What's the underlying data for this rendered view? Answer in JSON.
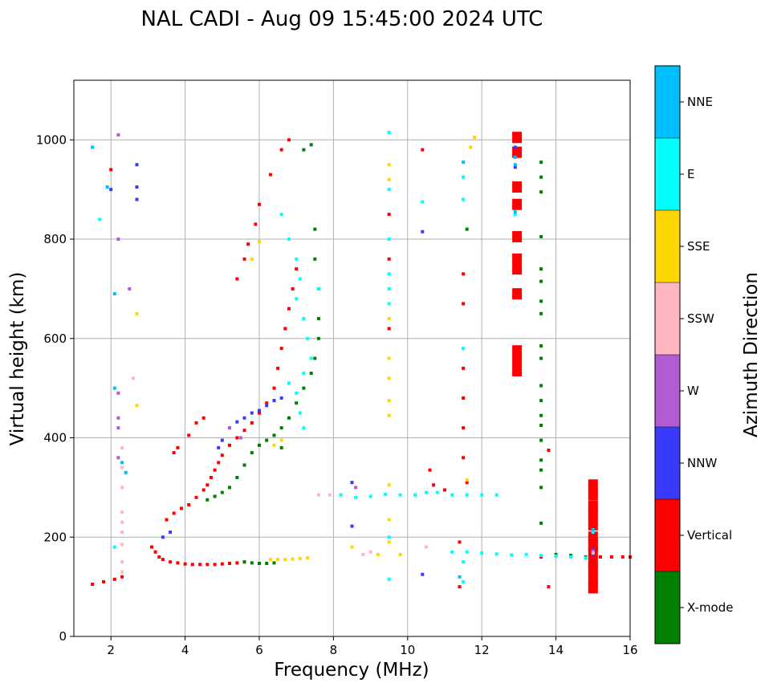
{
  "chart_data": {
    "type": "scatter",
    "title": "NAL CADI - Aug 09 15:45:00 2024 UTC",
    "xlabel": "Frequency (MHz)",
    "ylabel": "Virtual height (km)",
    "xlim": [
      1,
      16
    ],
    "ylim": [
      0,
      1120
    ],
    "xticks": [
      2,
      4,
      6,
      8,
      10,
      12,
      14,
      16
    ],
    "yticks": [
      0,
      200,
      400,
      600,
      800,
      1000
    ],
    "grid": true,
    "colorbar": {
      "label": "Azimuth Direction",
      "categories": [
        {
          "name": "X-mode",
          "color": "#008000"
        },
        {
          "name": "Vertical",
          "color": "#ff0000"
        },
        {
          "name": "NNW",
          "color": "#3a3aff"
        },
        {
          "name": "W",
          "color": "#b45ad2"
        },
        {
          "name": "SSW",
          "color": "#ffb6c1"
        },
        {
          "name": "SSE",
          "color": "#ffd700"
        },
        {
          "name": "E",
          "color": "#00ffff"
        },
        {
          "name": "NNE",
          "color": "#00bfff"
        }
      ]
    },
    "series": [
      {
        "name": "Vertical",
        "color": "#ff0000",
        "points": [
          [
            3.1,
            180
          ],
          [
            3.2,
            170
          ],
          [
            3.3,
            160
          ],
          [
            3.4,
            155
          ],
          [
            3.6,
            150
          ],
          [
            3.8,
            148
          ],
          [
            4.0,
            146
          ],
          [
            4.2,
            145
          ],
          [
            4.4,
            145
          ],
          [
            4.6,
            145
          ],
          [
            4.8,
            145
          ],
          [
            5.0,
            146
          ],
          [
            5.2,
            147
          ],
          [
            5.4,
            148
          ],
          [
            5.6,
            150
          ],
          [
            3.5,
            235
          ],
          [
            3.7,
            248
          ],
          [
            3.9,
            258
          ],
          [
            4.1,
            265
          ],
          [
            4.3,
            280
          ],
          [
            4.5,
            295
          ],
          [
            4.6,
            305
          ],
          [
            4.7,
            320
          ],
          [
            4.8,
            335
          ],
          [
            4.9,
            350
          ],
          [
            5.0,
            365
          ],
          [
            5.2,
            385
          ],
          [
            5.4,
            400
          ],
          [
            5.6,
            415
          ],
          [
            5.8,
            430
          ],
          [
            6.0,
            450
          ],
          [
            6.2,
            470
          ],
          [
            6.4,
            500
          ],
          [
            6.5,
            540
          ],
          [
            6.6,
            580
          ],
          [
            6.7,
            620
          ],
          [
            6.8,
            660
          ],
          [
            6.9,
            700
          ],
          [
            7.0,
            740
          ],
          [
            3.7,
            370
          ],
          [
            3.8,
            380
          ],
          [
            4.1,
            405
          ],
          [
            4.3,
            430
          ],
          [
            4.5,
            440
          ],
          [
            5.4,
            720
          ],
          [
            5.6,
            760
          ],
          [
            5.7,
            790
          ],
          [
            5.9,
            830
          ],
          [
            6.0,
            870
          ],
          [
            6.3,
            930
          ],
          [
            6.6,
            980
          ],
          [
            6.8,
            1000
          ],
          [
            1.5,
            105
          ],
          [
            1.8,
            110
          ],
          [
            2.1,
            115
          ],
          [
            2.3,
            120
          ],
          [
            2.0,
            940
          ],
          [
            9.5,
            850
          ],
          [
            9.5,
            760
          ],
          [
            9.5,
            620
          ],
          [
            10.4,
            980
          ],
          [
            10.6,
            335
          ],
          [
            10.7,
            305
          ],
          [
            11.0,
            295
          ],
          [
            11.4,
            190
          ],
          [
            11.4,
            100
          ],
          [
            11.5,
            540
          ],
          [
            11.5,
            480
          ],
          [
            11.5,
            420
          ],
          [
            11.5,
            360
          ],
          [
            11.5,
            730
          ],
          [
            11.5,
            670
          ],
          [
            11.6,
            310
          ],
          [
            13.8,
            375
          ],
          [
            13.8,
            100
          ],
          [
            13.6,
            160
          ],
          [
            14.0,
            162
          ],
          [
            15.2,
            160
          ],
          [
            15.5,
            160
          ],
          [
            15.8,
            160
          ],
          [
            16.0,
            160
          ]
        ]
      },
      {
        "name": "Vertical (blocks)",
        "color": "#ff0000",
        "points": [
          [
            12.95,
            1005
          ],
          [
            12.95,
            975
          ],
          [
            12.95,
            905
          ],
          [
            12.95,
            870
          ],
          [
            12.95,
            805
          ],
          [
            12.95,
            760
          ],
          [
            12.95,
            740
          ],
          [
            12.95,
            690
          ],
          [
            12.95,
            575
          ],
          [
            12.95,
            555
          ],
          [
            12.95,
            535
          ],
          [
            15.0,
            305
          ],
          [
            15.0,
            285
          ],
          [
            15.0,
            262
          ],
          [
            15.0,
            245
          ],
          [
            15.0,
            225
          ],
          [
            15.0,
            200
          ],
          [
            15.0,
            185
          ],
          [
            15.0,
            170
          ],
          [
            15.0,
            150
          ],
          [
            15.0,
            135
          ],
          [
            15.0,
            115
          ],
          [
            15.0,
            98
          ]
        ]
      },
      {
        "name": "X-mode",
        "color": "#008000",
        "points": [
          [
            4.6,
            275
          ],
          [
            4.8,
            282
          ],
          [
            5.0,
            290
          ],
          [
            5.2,
            300
          ],
          [
            5.4,
            320
          ],
          [
            5.6,
            345
          ],
          [
            5.8,
            370
          ],
          [
            6.0,
            385
          ],
          [
            6.2,
            395
          ],
          [
            6.4,
            405
          ],
          [
            6.6,
            420
          ],
          [
            6.8,
            440
          ],
          [
            7.0,
            470
          ],
          [
            7.2,
            500
          ],
          [
            7.4,
            530
          ],
          [
            7.5,
            560
          ],
          [
            7.6,
            600
          ],
          [
            7.6,
            640
          ],
          [
            7.6,
            700
          ],
          [
            7.5,
            760
          ],
          [
            7.5,
            820
          ],
          [
            5.6,
            150
          ],
          [
            5.8,
            148
          ],
          [
            6.0,
            147
          ],
          [
            6.2,
            147
          ],
          [
            6.4,
            148
          ],
          [
            6.6,
            380
          ],
          [
            7.2,
            980
          ],
          [
            7.4,
            990
          ],
          [
            13.6,
            955
          ],
          [
            13.6,
            925
          ],
          [
            13.6,
            895
          ],
          [
            13.6,
            805
          ],
          [
            13.6,
            740
          ],
          [
            13.6,
            715
          ],
          [
            13.6,
            675
          ],
          [
            13.6,
            650
          ],
          [
            13.6,
            585
          ],
          [
            13.6,
            560
          ],
          [
            13.6,
            505
          ],
          [
            13.6,
            475
          ],
          [
            13.6,
            445
          ],
          [
            13.6,
            425
          ],
          [
            13.6,
            395
          ],
          [
            13.6,
            355
          ],
          [
            13.6,
            335
          ],
          [
            13.6,
            300
          ],
          [
            13.6,
            228
          ],
          [
            11.6,
            820
          ],
          [
            14.0,
            165
          ],
          [
            14.4,
            163
          ],
          [
            14.8,
            160
          ]
        ]
      },
      {
        "name": "NNW",
        "color": "#3a3aff",
        "points": [
          [
            3.4,
            200
          ],
          [
            3.6,
            210
          ],
          [
            5.2,
            420
          ],
          [
            5.4,
            432
          ],
          [
            5.6,
            440
          ],
          [
            5.8,
            450
          ],
          [
            6.0,
            455
          ],
          [
            6.2,
            465
          ],
          [
            6.4,
            475
          ],
          [
            6.6,
            480
          ],
          [
            5.0,
            395
          ],
          [
            4.9,
            380
          ],
          [
            2.0,
            900
          ],
          [
            2.7,
            880
          ],
          [
            2.7,
            905
          ],
          [
            2.7,
            950
          ],
          [
            10.4,
            815
          ],
          [
            10.4,
            125
          ],
          [
            8.5,
            310
          ],
          [
            8.5,
            222
          ],
          [
            12.9,
            985
          ],
          [
            12.9,
            945
          ],
          [
            15.0,
            175
          ],
          [
            15.0,
            165
          ]
        ]
      },
      {
        "name": "W",
        "color": "#b45ad2",
        "points": [
          [
            2.2,
            1010
          ],
          [
            2.2,
            800
          ],
          [
            2.2,
            490
          ],
          [
            2.2,
            440
          ],
          [
            2.2,
            420
          ],
          [
            2.2,
            360
          ],
          [
            2.5,
            700
          ],
          [
            5.2,
            420
          ],
          [
            5.5,
            400
          ],
          [
            8.6,
            300
          ],
          [
            15.0,
            172
          ]
        ]
      },
      {
        "name": "SSW",
        "color": "#ffb6c1",
        "points": [
          [
            2.3,
            380
          ],
          [
            2.3,
            340
          ],
          [
            2.3,
            300
          ],
          [
            2.3,
            250
          ],
          [
            2.3,
            230
          ],
          [
            2.3,
            210
          ],
          [
            2.3,
            185
          ],
          [
            2.3,
            150
          ],
          [
            2.3,
            130
          ],
          [
            2.6,
            520
          ],
          [
            7.9,
            285
          ],
          [
            7.6,
            285
          ],
          [
            10.5,
            180
          ],
          [
            9.0,
            170
          ],
          [
            8.8,
            165
          ],
          [
            15.0,
            168
          ]
        ]
      },
      {
        "name": "SSE",
        "color": "#ffd700",
        "points": [
          [
            6.3,
            155
          ],
          [
            6.5,
            155
          ],
          [
            6.7,
            155
          ],
          [
            6.9,
            156
          ],
          [
            7.1,
            157
          ],
          [
            7.3,
            158
          ],
          [
            6.4,
            385
          ],
          [
            6.6,
            395
          ],
          [
            5.8,
            760
          ],
          [
            6.0,
            795
          ],
          [
            9.5,
            950
          ],
          [
            9.5,
            920
          ],
          [
            9.5,
            640
          ],
          [
            9.5,
            560
          ],
          [
            9.5,
            520
          ],
          [
            9.5,
            475
          ],
          [
            9.5,
            445
          ],
          [
            9.5,
            305
          ],
          [
            9.5,
            235
          ],
          [
            9.5,
            190
          ],
          [
            8.5,
            180
          ],
          [
            9.2,
            165
          ],
          [
            9.8,
            165
          ],
          [
            11.8,
            1005
          ],
          [
            11.7,
            985
          ],
          [
            11.6,
            315
          ],
          [
            2.7,
            650
          ],
          [
            2.7,
            465
          ]
        ]
      },
      {
        "name": "E",
        "color": "#00ffff",
        "points": [
          [
            6.6,
            850
          ],
          [
            6.8,
            800
          ],
          [
            7.0,
            760
          ],
          [
            7.1,
            720
          ],
          [
            7.0,
            680
          ],
          [
            7.2,
            640
          ],
          [
            7.3,
            600
          ],
          [
            7.4,
            560
          ],
          [
            7.2,
            530
          ],
          [
            7.0,
            490
          ],
          [
            7.1,
            450
          ],
          [
            7.2,
            420
          ],
          [
            6.8,
            510
          ],
          [
            7.6,
            700
          ],
          [
            8.2,
            285
          ],
          [
            8.6,
            280
          ],
          [
            9.0,
            282
          ],
          [
            9.4,
            286
          ],
          [
            9.8,
            285
          ],
          [
            10.2,
            285
          ],
          [
            10.5,
            290
          ],
          [
            10.8,
            290
          ],
          [
            11.2,
            285
          ],
          [
            11.6,
            285
          ],
          [
            12.0,
            285
          ],
          [
            12.4,
            285
          ],
          [
            11.2,
            170
          ],
          [
            11.6,
            170
          ],
          [
            12.0,
            168
          ],
          [
            12.4,
            166
          ],
          [
            12.8,
            164
          ],
          [
            13.2,
            165
          ],
          [
            13.6,
            163
          ],
          [
            14.0,
            162
          ],
          [
            14.4,
            160
          ],
          [
            14.8,
            158
          ],
          [
            9.5,
            1015
          ],
          [
            9.5,
            900
          ],
          [
            9.5,
            800
          ],
          [
            9.5,
            730
          ],
          [
            9.5,
            700
          ],
          [
            9.5,
            670
          ],
          [
            9.5,
            200
          ],
          [
            9.5,
            115
          ],
          [
            10.4,
            875
          ],
          [
            11.5,
            880
          ],
          [
            11.5,
            925
          ],
          [
            11.5,
            580
          ],
          [
            11.5,
            150
          ],
          [
            11.5,
            110
          ],
          [
            12.9,
            850
          ],
          [
            15.0,
            210
          ],
          [
            1.7,
            840
          ],
          [
            2.1,
            180
          ]
        ]
      },
      {
        "name": "NNE",
        "color": "#00bfff",
        "points": [
          [
            1.5,
            985
          ],
          [
            1.9,
            905
          ],
          [
            2.1,
            690
          ],
          [
            2.1,
            500
          ],
          [
            2.3,
            350
          ],
          [
            2.4,
            330
          ],
          [
            12.9,
            965
          ],
          [
            12.9,
            950
          ],
          [
            12.9,
            855
          ],
          [
            11.4,
            120
          ],
          [
            11.5,
            955
          ],
          [
            15.0,
            215
          ]
        ]
      }
    ]
  }
}
